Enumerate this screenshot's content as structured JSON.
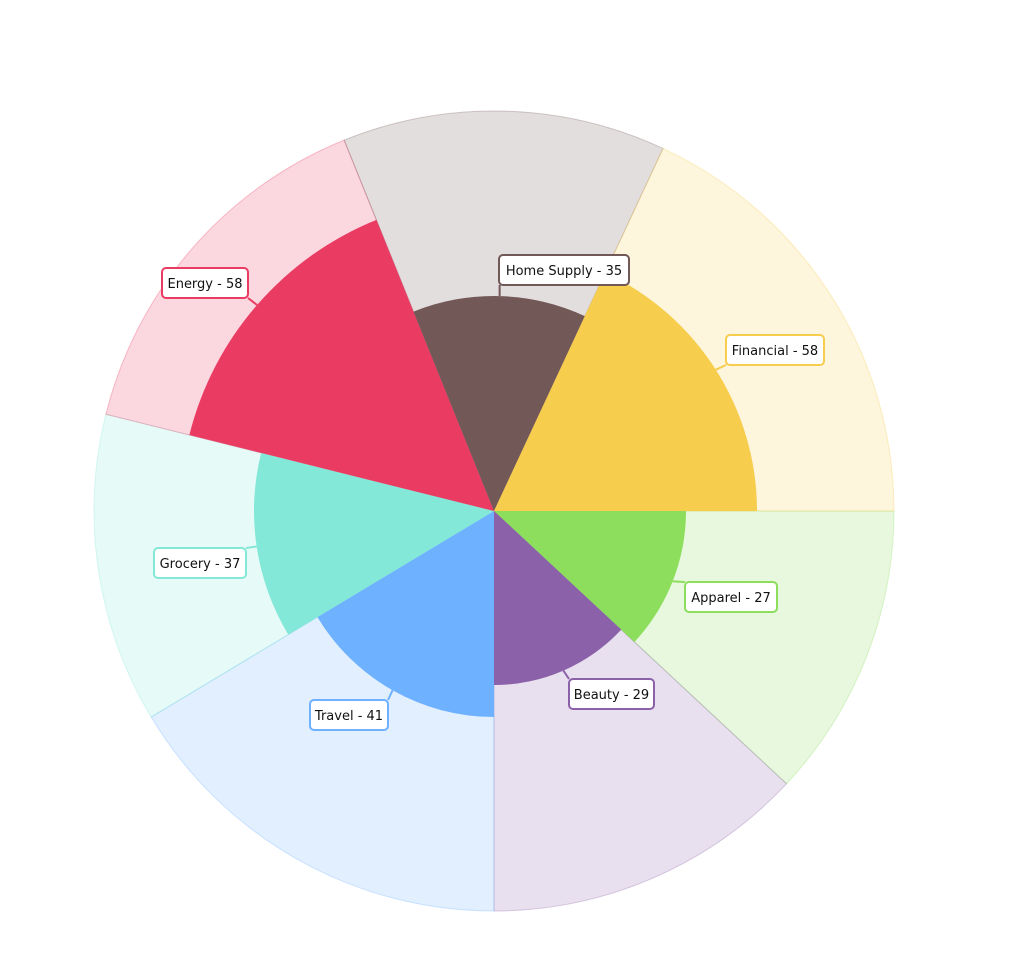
{
  "chart_data": {
    "type": "pie",
    "variant": "polar-area",
    "categories": [
      "Apparel",
      "Beauty",
      "Travel",
      "Grocery",
      "Energy",
      "Home Supply",
      "Financial"
    ],
    "values": [
      27,
      29,
      41,
      37,
      58,
      35,
      58
    ],
    "data_labels": [
      "Apparel - 27",
      "Beauty - 29",
      "Travel - 41",
      "Grocery - 37",
      "Energy - 58",
      "Home Supply - 35",
      "Financial - 58"
    ],
    "colors": [
      "#8CDE5C",
      "#8B62AA",
      "#6EB1FF",
      "#83E8D8",
      "#EA3C63",
      "#735858",
      "#F7CD4E"
    ],
    "legend": "none",
    "grid": false
  }
}
